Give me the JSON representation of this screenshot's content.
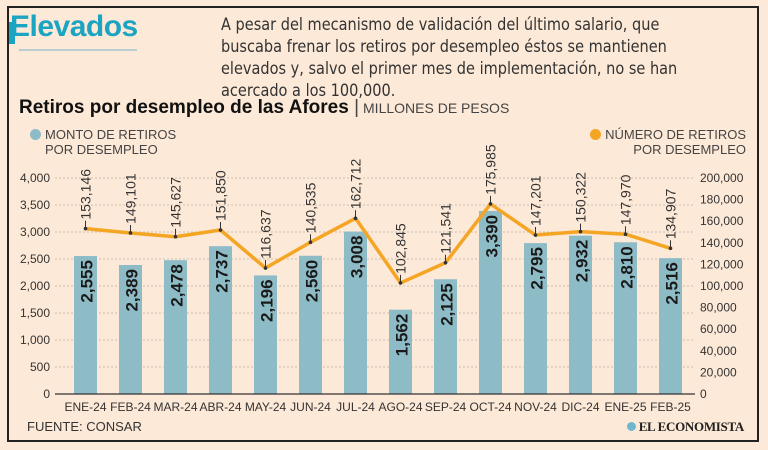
{
  "header": {
    "title": "Elevados",
    "intro": "A pesar del mecanismo de validación del último salario, que buscaba frenar los retiros por desempleo éstos se mantienen elevados y, salvo el primer mes de implementación, no se han acercado a los 100,000."
  },
  "footer": {
    "source": "FUENTE: CONSAR",
    "logo": "EL ECONOMISTA"
  },
  "chart_data": {
    "type": "bar+line",
    "title": "Retiros por desempleo de las Afores",
    "subtitle": "MILLONES DE PESOS",
    "categories": [
      "ENE-24",
      "FEB-24",
      "MAR-24",
      "ABR-24",
      "MAY-24",
      "JUN-24",
      "JUL-24",
      "AGO-24",
      "SEP-24",
      "OCT-24",
      "NOV-24",
      "DIC-24",
      "ENE-25",
      "FEB-25"
    ],
    "series": [
      {
        "name": "MONTO DE RETIROS POR DESEMPLEO",
        "type": "bar",
        "axis": "left",
        "color": "#8dbcc7",
        "values": [
          2555,
          2389,
          2478,
          2737,
          2196,
          2560,
          3008,
          1562,
          2125,
          3390,
          2795,
          2932,
          2810,
          2516
        ],
        "labels": [
          "2,555",
          "2,389",
          "2,478",
          "2,737",
          "2,196",
          "2,560",
          "3,008",
          "1,562",
          "2,125",
          "3,390",
          "2,795",
          "2,932",
          "2,810",
          "2,516"
        ]
      },
      {
        "name": "NÚMERO DE RETIROS POR DESEMPLEO",
        "type": "line",
        "axis": "right",
        "color": "#f5a524",
        "values": [
          153146,
          149101,
          145627,
          151850,
          116637,
          140535,
          162712,
          102845,
          121541,
          175985,
          147201,
          150322,
          147970,
          134907
        ],
        "labels": [
          "153,146",
          "149,101",
          "145,627",
          "151,850",
          "116,637",
          "140,535",
          "162,712",
          "102,845",
          "121,541",
          "175,985",
          "147,201",
          "150,322",
          "147,970",
          "134,907"
        ]
      }
    ],
    "left_axis": {
      "range": [
        0,
        4000
      ],
      "ticks": [
        "0",
        "500",
        "1,000",
        "1,500",
        "2,000",
        "2,500",
        "3,000",
        "3,500",
        "4,000"
      ]
    },
    "right_axis": {
      "range": [
        0,
        200000
      ],
      "ticks": [
        "0",
        "20,000",
        "40,000",
        "60,000",
        "80,000",
        "100,000",
        "120,000",
        "140,000",
        "160,000",
        "180,000",
        "200,000"
      ]
    },
    "grid": true,
    "legend": [
      "top-left",
      "top-right"
    ]
  }
}
